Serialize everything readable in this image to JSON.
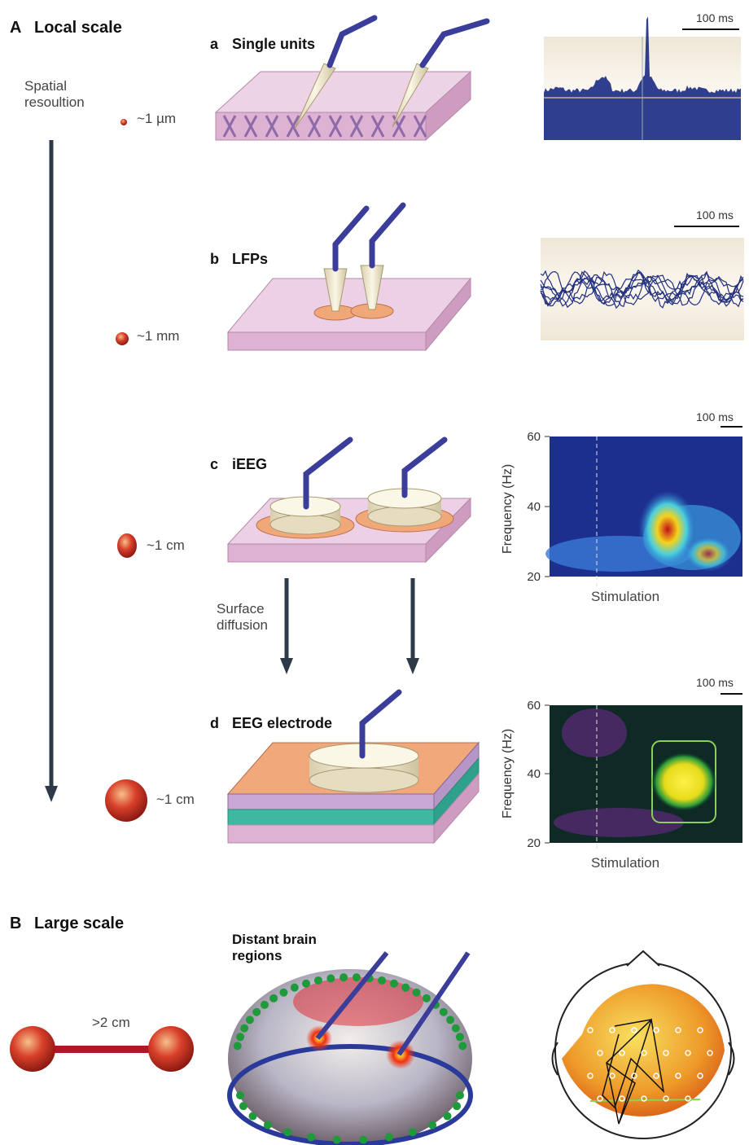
{
  "section_a": {
    "letter": "A",
    "title": "Local scale",
    "axis_label": "Spatial resoultion",
    "scales": [
      "~1 µm",
      "~1 mm",
      "~1 cm",
      "~1 cm"
    ]
  },
  "panels": [
    {
      "letter": "a",
      "title": "Single units",
      "scale_bar": "100 ms"
    },
    {
      "letter": "b",
      "title": "LFPs",
      "scale_bar": "100 ms"
    },
    {
      "letter": "c",
      "title": "iEEG",
      "scale_bar": "100 ms"
    },
    {
      "letter": "d",
      "title": "EEG electrode",
      "scale_bar": "100 ms"
    }
  ],
  "arrow_label": "Surface diffusion",
  "spectrograms": [
    {
      "ylabel": "Frequency (Hz)",
      "yticks": [
        "60",
        "40",
        "20"
      ],
      "xlabel": "Stimulation"
    },
    {
      "ylabel": "Frequency (Hz)",
      "yticks": [
        "60",
        "40",
        "20"
      ],
      "xlabel": "Stimulation"
    }
  ],
  "section_b": {
    "letter": "B",
    "title": "Large scale",
    "distance": ">2 cm",
    "brain_label": "Distant brain regions"
  }
}
